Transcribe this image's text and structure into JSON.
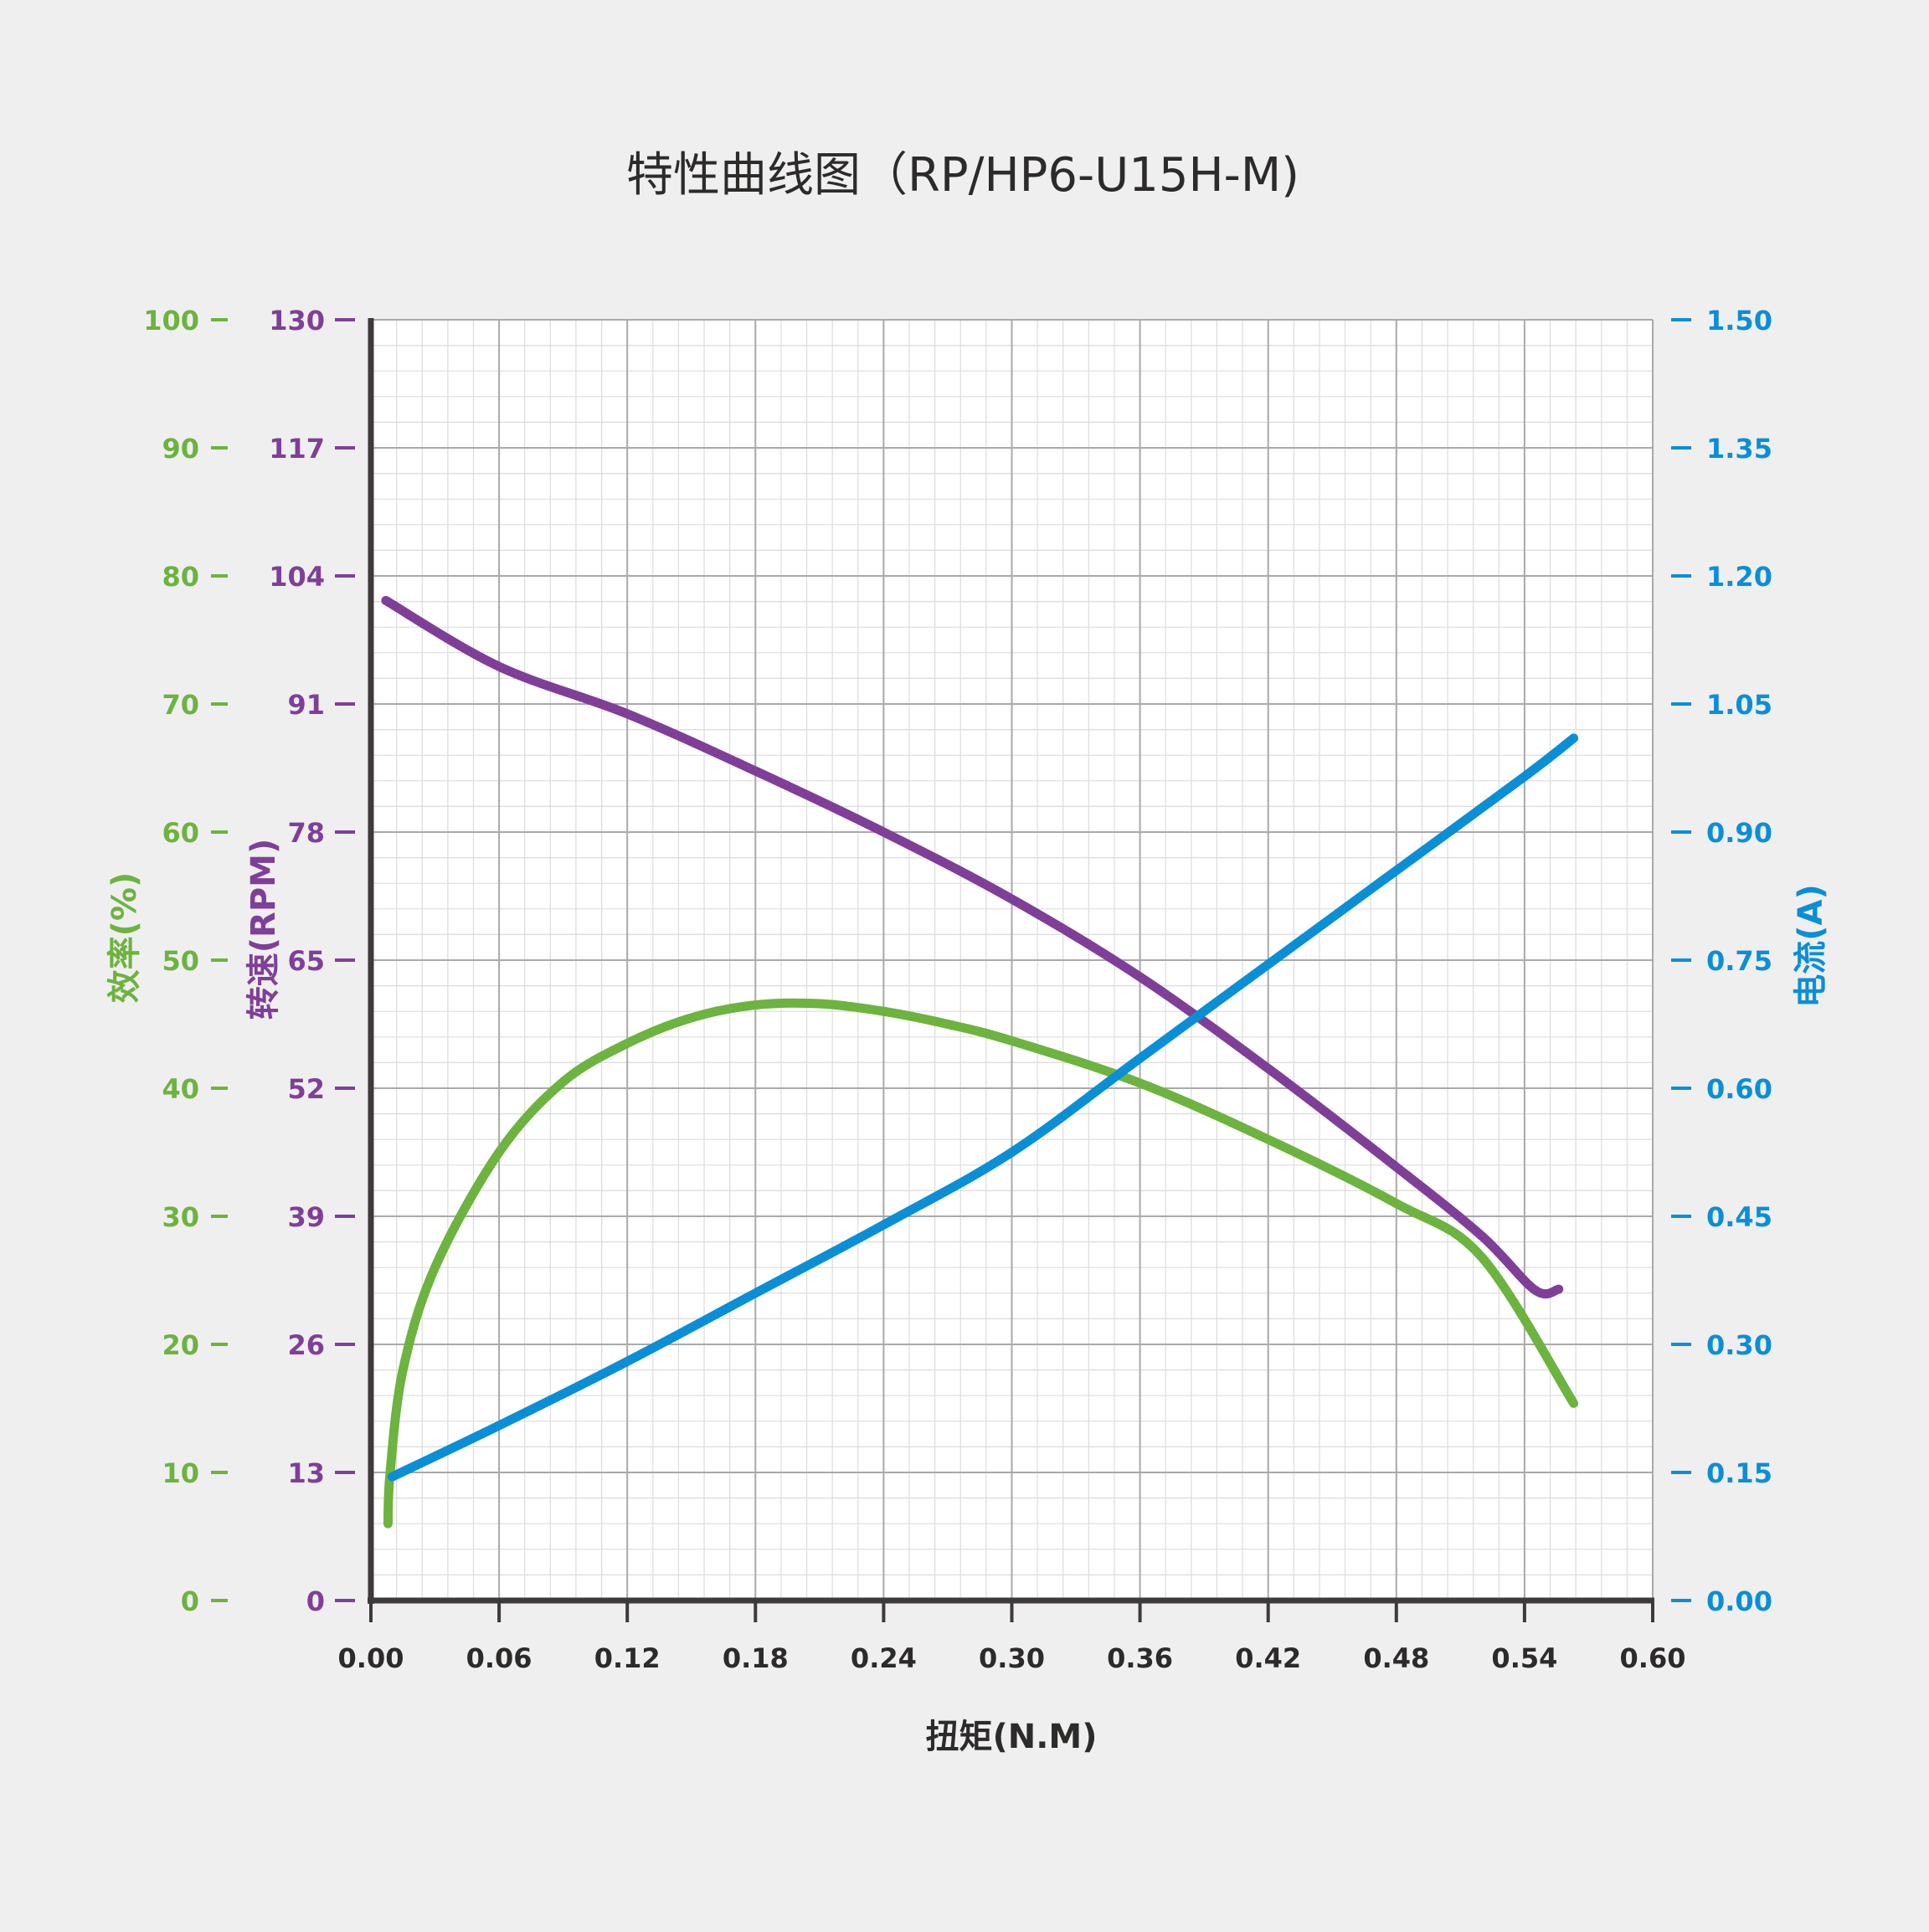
{
  "colors": {
    "efficiency": "#6db33f",
    "speed": "#7f3f98",
    "current": "#0a8fd6",
    "axis": "#3e3a3a",
    "text": "#2d2a2a"
  },
  "chart_data": {
    "type": "line",
    "title": "特性曲线图（RP/HP6-U15H-M)",
    "xlabel": "扭矩(N.M)",
    "xlim": [
      0,
      0.6
    ],
    "xticks": [
      "0.00",
      "0.06",
      "0.12",
      "0.18",
      "0.24",
      "0.30",
      "0.36",
      "0.42",
      "0.48",
      "0.54",
      "0.60"
    ],
    "axes": {
      "efficiency": {
        "label": "效率(%)",
        "lim": [
          0,
          100
        ],
        "ticks": [
          "0",
          "10",
          "20",
          "30",
          "40",
          "50",
          "60",
          "70",
          "80",
          "90",
          "100"
        ]
      },
      "speed": {
        "label": "转速(RPM)",
        "lim": [
          0,
          130
        ],
        "ticks": [
          "0",
          "13",
          "26",
          "39",
          "52",
          "65",
          "78",
          "91",
          "104",
          "117",
          "130"
        ]
      },
      "current": {
        "label": "电流(A)",
        "lim": [
          0,
          1.5
        ],
        "ticks": [
          "0.00",
          "0.15",
          "0.30",
          "0.45",
          "0.60",
          "0.75",
          "0.90",
          "1.05",
          "1.20",
          "1.35",
          "1.50"
        ]
      }
    },
    "grid": true,
    "series": [
      {
        "key": "speed",
        "axis": "speed",
        "x": [
          0.007,
          0.06,
          0.12,
          0.18,
          0.24,
          0.3,
          0.36,
          0.42,
          0.48,
          0.52,
          0.545,
          0.556
        ],
        "y": [
          101.5,
          94.8,
          90.0,
          84.2,
          78.0,
          71.2,
          63.3,
          54.0,
          44.0,
          37.0,
          31.5,
          31.6
        ]
      },
      {
        "key": "efficiency",
        "axis": "efficiency",
        "x": [
          0.008,
          0.009,
          0.015,
          0.03,
          0.06,
          0.09,
          0.12,
          0.15,
          0.18,
          0.21,
          0.24,
          0.27,
          0.3,
          0.36,
          0.42,
          0.48,
          0.52,
          0.563
        ],
        "y": [
          6,
          10,
          18,
          26,
          35,
          40.5,
          43.5,
          45.5,
          46.5,
          46.6,
          46.0,
          45.0,
          43.7,
          40.4,
          36.0,
          31.0,
          26.8,
          15.4
        ]
      },
      {
        "key": "current",
        "axis": "current",
        "x": [
          0.01,
          0.06,
          0.12,
          0.18,
          0.24,
          0.3,
          0.36,
          0.42,
          0.48,
          0.54,
          0.563
        ],
        "y": [
          0.145,
          0.205,
          0.28,
          0.36,
          0.44,
          0.525,
          0.635,
          0.745,
          0.855,
          0.965,
          1.01
        ]
      }
    ]
  }
}
